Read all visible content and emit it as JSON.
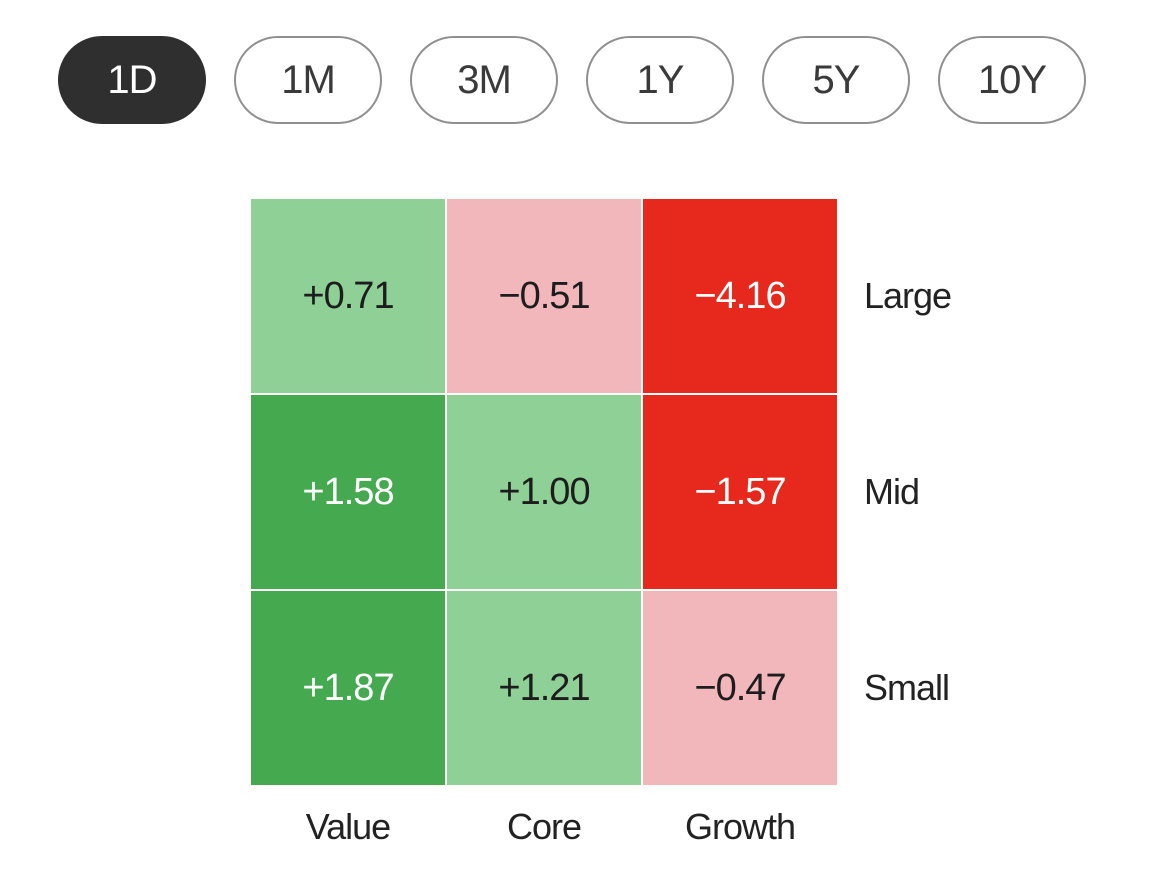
{
  "period_selector": {
    "options": [
      {
        "label": "1D",
        "selected": true
      },
      {
        "label": "1M",
        "selected": false
      },
      {
        "label": "3M",
        "selected": false
      },
      {
        "label": "1Y",
        "selected": false
      },
      {
        "label": "5Y",
        "selected": false
      },
      {
        "label": "10Y",
        "selected": false
      }
    ]
  },
  "colors": {
    "green_strong": "#45a94f",
    "green_light": "#8fd096",
    "red_light": "#f2b7ba",
    "red_strong": "#e6281d",
    "text_dark": "#1d1d1d",
    "text_light": "#ffffff",
    "pill_selected_bg": "#2f2f2f",
    "pill_border": "#8f8f8f"
  },
  "chart_data": {
    "type": "heatmap",
    "title": "",
    "rows": [
      "Large",
      "Mid",
      "Small"
    ],
    "columns": [
      "Value",
      "Core",
      "Growth"
    ],
    "values": [
      [
        0.71,
        -0.51,
        -4.16
      ],
      [
        1.58,
        1.0,
        -1.57
      ],
      [
        1.87,
        1.21,
        -0.47
      ]
    ],
    "cells": [
      [
        {
          "text": "+0.71",
          "tone": "green_light"
        },
        {
          "text": "−0.51",
          "tone": "red_light"
        },
        {
          "text": "−4.16",
          "tone": "red_strong"
        }
      ],
      [
        {
          "text": "+1.58",
          "tone": "green_strong"
        },
        {
          "text": "+1.00",
          "tone": "green_light"
        },
        {
          "text": "−1.57",
          "tone": "red_strong"
        }
      ],
      [
        {
          "text": "+1.87",
          "tone": "green_strong"
        },
        {
          "text": "+1.21",
          "tone": "green_light"
        },
        {
          "text": "−0.47",
          "tone": "red_light"
        }
      ]
    ],
    "legend": "none",
    "selected_period": "1D"
  }
}
